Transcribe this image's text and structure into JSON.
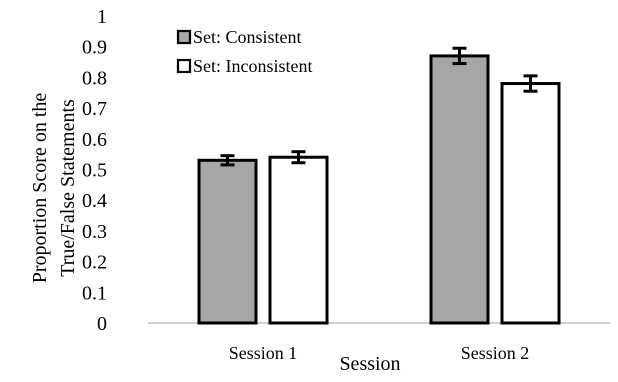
{
  "chart_data": {
    "type": "bar",
    "categories": [
      "Session 1",
      "Session 2"
    ],
    "series": [
      {
        "name": "Set: Consistent",
        "values": [
          0.53,
          0.87
        ],
        "errors": [
          0.015,
          0.025
        ],
        "color": "#a6a6a6"
      },
      {
        "name": "Set: Inconsistent",
        "values": [
          0.54,
          0.78
        ],
        "errors": [
          0.018,
          0.025
        ],
        "color": "#ffffff"
      }
    ],
    "xlabel": "Session",
    "ylabel_lines": [
      "Proportion Score on the",
      "True/False Statements"
    ],
    "ylim": [
      0,
      1
    ],
    "yticks": [
      "0",
      "0.1",
      "0.2",
      "0.3",
      "0.4",
      "0.5",
      "0.6",
      "0.7",
      "0.8",
      "0.9",
      "1"
    ],
    "legend_position": "top-left",
    "grid": false
  }
}
